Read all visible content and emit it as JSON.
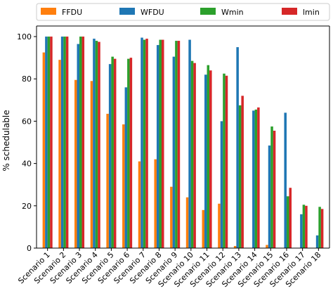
{
  "chart_data": {
    "type": "bar",
    "categories": [
      "Scenario 1",
      "Scenario 2",
      "Scenario 3",
      "Scenario 4",
      "Scenario 5",
      "Scenario 6",
      "Scenario 7",
      "Scenario 8",
      "Scenario 9",
      "Scenario 10",
      "Scenario 11",
      "Scenario 12",
      "Scenario 13",
      "Scenario 14",
      "Scenario 15",
      "Scenario 16",
      "Scenario 17",
      "Scenario 18"
    ],
    "series": [
      {
        "name": "FFDU",
        "color": "#ff7f0e",
        "values": [
          92.5,
          89,
          79.5,
          79,
          63.5,
          58.5,
          41,
          42,
          29,
          24,
          18,
          21,
          1,
          0,
          1.5,
          0,
          0,
          0
        ]
      },
      {
        "name": "WFDU",
        "color": "#1f77b4",
        "values": [
          100,
          100,
          96.5,
          99,
          87,
          76,
          99.5,
          96,
          90.5,
          98.5,
          82,
          60,
          95,
          65,
          48.5,
          64,
          16,
          6
        ]
      },
      {
        "name": "Wmin",
        "color": "#2ca02c",
        "values": [
          100,
          100,
          100,
          98,
          90.5,
          89.5,
          98.5,
          98.5,
          98,
          88.5,
          86.5,
          82.5,
          67.5,
          65.5,
          57.5,
          24.5,
          20.5,
          19.5
        ]
      },
      {
        "name": "lmin",
        "color": "#d62728",
        "values": [
          100,
          100,
          100,
          97.5,
          89.5,
          90,
          99,
          98.5,
          98,
          87.5,
          84,
          81.5,
          72,
          66.5,
          55.5,
          28.5,
          20,
          18.5
        ]
      }
    ],
    "title": "",
    "xlabel": "",
    "ylabel": "% schedulable",
    "ylim": [
      0,
      105
    ],
    "yticks": [
      0,
      20,
      40,
      60,
      80,
      100
    ],
    "grid": false,
    "legend": "top, horizontal, above plot"
  }
}
